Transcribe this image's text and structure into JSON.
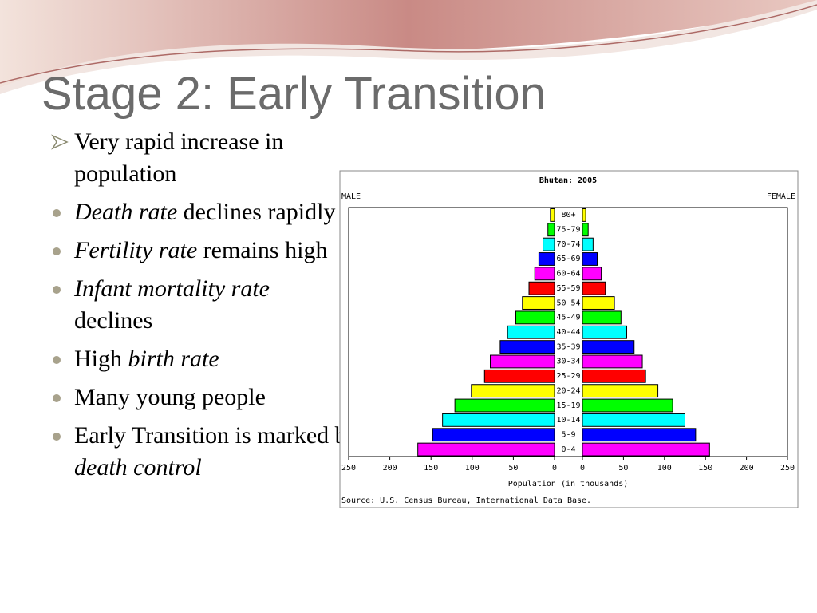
{
  "slide": {
    "title": "Stage 2: Early Transition",
    "bullets": [
      {
        "marker": "arrow",
        "runs": [
          {
            "text": "Very rapid increase in population",
            "italic": false
          }
        ]
      },
      {
        "marker": "dot",
        "runs": [
          {
            "text": "Death rate",
            "italic": true
          },
          {
            "text": " declines rapidly",
            "italic": false
          }
        ]
      },
      {
        "marker": "dot",
        "runs": [
          {
            "text": "Fertility rate",
            "italic": true
          },
          {
            "text": " remains high",
            "italic": false
          }
        ]
      },
      {
        "marker": "dot",
        "runs": [
          {
            "text": "Infant mortality rate",
            "italic": true
          },
          {
            "text": " declines",
            "italic": false
          }
        ]
      },
      {
        "marker": "dot",
        "runs": [
          {
            "text": "High ",
            "italic": false
          },
          {
            "text": "birth rate",
            "italic": true
          }
        ]
      },
      {
        "marker": "dot",
        "runs": [
          {
            "text": "Many young people",
            "italic": false
          }
        ]
      },
      {
        "marker": "dot",
        "runs": [
          {
            "text": "Early Transition is marked by ",
            "italic": false
          },
          {
            "text": "death control",
            "italic": true
          }
        ]
      }
    ]
  },
  "chart_data": {
    "type": "pyramid",
    "title": "Bhutan: 2005",
    "xlabel": "Population (in thousands)",
    "source": "Source: U.S. Census Bureau, International Data Base.",
    "categories": [
      "0-4",
      "5-9",
      "10-14",
      "15-19",
      "20-24",
      "25-29",
      "30-34",
      "35-39",
      "40-44",
      "45-49",
      "50-54",
      "55-59",
      "60-64",
      "65-69",
      "70-74",
      "75-79",
      "80+"
    ],
    "colors": [
      "#ff00ff",
      "#0000ff",
      "#00ffff",
      "#00ff00",
      "#ffff00",
      "#ff0000",
      "#ff00ff",
      "#0000ff",
      "#00ffff",
      "#00ff00",
      "#ffff00",
      "#ff0000",
      "#ff00ff",
      "#0000ff",
      "#00ffff",
      "#00ff00",
      "#ffff00"
    ],
    "series": [
      {
        "name": "MALE",
        "values": [
          166,
          148,
          136,
          121,
          101,
          85,
          78,
          66,
          57,
          47,
          39,
          31,
          24,
          19,
          14,
          8,
          5
        ]
      },
      {
        "name": "FEMALE",
        "values": [
          155,
          138,
          125,
          110,
          92,
          77,
          73,
          63,
          54,
          47,
          39,
          28,
          23,
          18,
          13,
          7,
          4
        ]
      }
    ],
    "xlim": [
      0,
      250
    ],
    "xticks": [
      0,
      50,
      100,
      150,
      200,
      250
    ]
  }
}
